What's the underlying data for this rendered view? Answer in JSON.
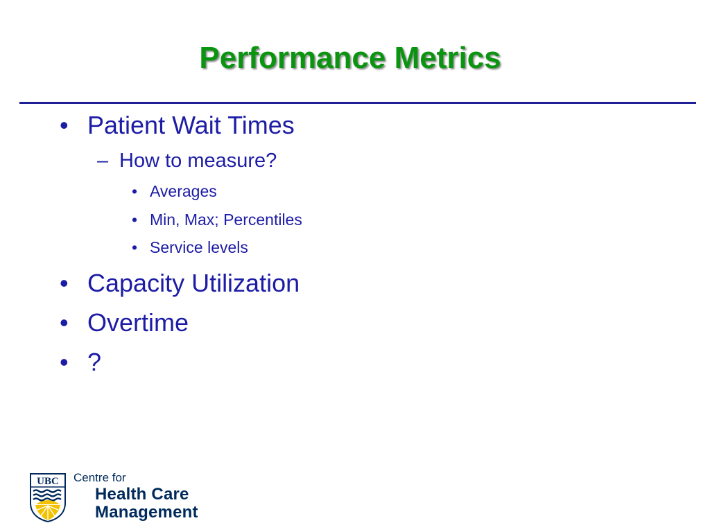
{
  "slide": {
    "title": "Performance Metrics",
    "bullets": [
      {
        "marker": "•",
        "text": "Patient Wait Times"
      },
      {
        "marker": "–",
        "text": "How to measure?"
      },
      {
        "marker": "•",
        "text": "Averages"
      },
      {
        "marker": "•",
        "text": "Min, Max; Percentiles"
      },
      {
        "marker": "•",
        "text": "Service levels"
      },
      {
        "marker": "•",
        "text": "Capacity Utilization"
      },
      {
        "marker": "•",
        "text": "Overtime"
      },
      {
        "marker": "•",
        "text": "?"
      }
    ]
  },
  "logo": {
    "crest_text": "UBC",
    "line1": "Centre for",
    "line2": "Health Care",
    "line3": "Management"
  },
  "colors": {
    "title": "#0a9410",
    "body_text": "#1c1ca6",
    "rule": "#1f1f96",
    "logo_text": "#002a5c",
    "crest_sun": "#f2c200"
  }
}
